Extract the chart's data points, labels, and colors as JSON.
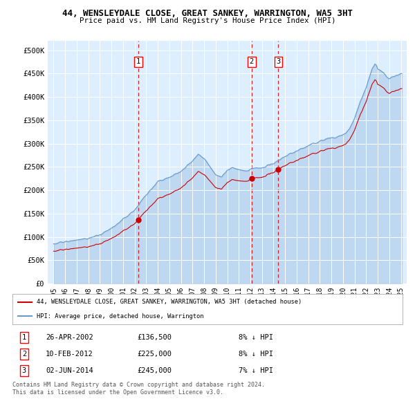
{
  "title": "44, WENSLEYDALE CLOSE, GREAT SANKEY, WARRINGTON, WA5 3HT",
  "subtitle": "Price paid vs. HM Land Registry's House Price Index (HPI)",
  "hpi_color": "#6699cc",
  "price_color": "#cc0000",
  "dashed_color": "#cc0000",
  "bg_color": "#ddeeff",
  "grid_color": "#c8d8e8",
  "ylim": [
    0,
    520000
  ],
  "yticks": [
    0,
    50000,
    100000,
    150000,
    200000,
    250000,
    300000,
    350000,
    400000,
    450000,
    500000
  ],
  "ytick_labels": [
    "£0",
    "£50K",
    "£100K",
    "£150K",
    "£200K",
    "£250K",
    "£300K",
    "£350K",
    "£400K",
    "£450K",
    "£500K"
  ],
  "sale_dates": [
    "26-APR-2002",
    "10-FEB-2012",
    "02-JUN-2014"
  ],
  "sale_prices": [
    136500,
    225000,
    245000
  ],
  "sale_years": [
    2002.32,
    2012.11,
    2014.42
  ],
  "sale_hpi_pct": [
    "8% ↓ HPI",
    "8% ↓ HPI",
    "7% ↓ HPI"
  ],
  "legend_line1": "44, WENSLEYDALE CLOSE, GREAT SANKEY, WARRINGTON, WA5 3HT (detached house)",
  "legend_line2": "HPI: Average price, detached house, Warrington",
  "footnote1": "Contains HM Land Registry data © Crown copyright and database right 2024.",
  "footnote2": "This data is licensed under the Open Government Licence v3.0.",
  "xtick_years": [
    1995,
    1996,
    1997,
    1998,
    1999,
    2000,
    2001,
    2002,
    2003,
    2004,
    2005,
    2006,
    2007,
    2008,
    2009,
    2010,
    2011,
    2012,
    2013,
    2014,
    2015,
    2016,
    2017,
    2018,
    2019,
    2020,
    2021,
    2022,
    2023,
    2024,
    2025
  ]
}
